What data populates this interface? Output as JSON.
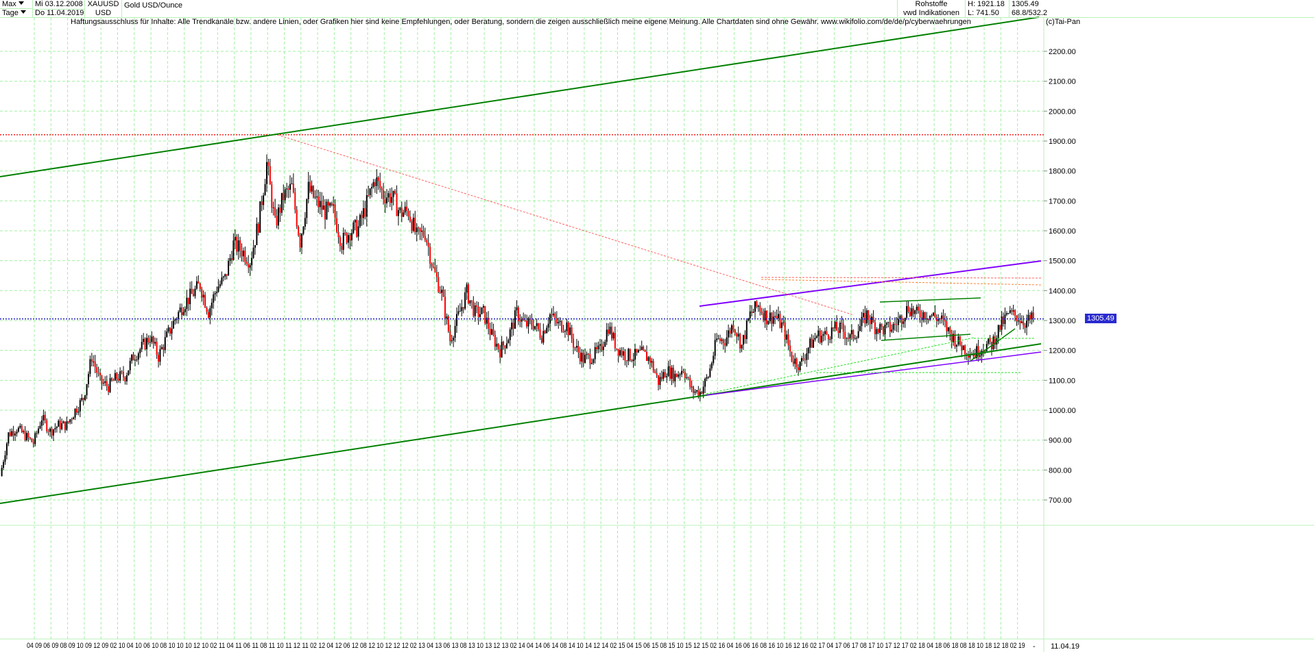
{
  "header": {
    "range_select": "Max",
    "interval_select": "Tage",
    "date_from": "Mi 03.12.2008",
    "date_to": "Do 11.04.2019",
    "symbol": "XAUUSD",
    "currency": "USD",
    "name": "Gold USD/Ounce",
    "category": "Rohstoffe",
    "source": "vwd Indikationen",
    "high": "H: 1921.18",
    "low": "L: 741.50",
    "last": "1305.49",
    "stats": "68.8/532.2"
  },
  "disclaimer": "Haftungsausschluss für Inhalte: Alle Trendkanäle bzw. andere Linien, oder Grafiken hier sind keine Empfehlungen, oder Beratung, sondern die zeigen ausschließlich meine eigene Meinung. Alle Chartdaten sind ohne Gewähr.  www.wikifolio.com/de/de/p/cyberwaehrungen",
  "copyright": "(c)Tai-Pan",
  "last_price_label": "1305.49",
  "axis_end_date": "11.04.19",
  "axis_end_dash": "-",
  "colors": {
    "up": "#000000",
    "down": "#ff0000",
    "grid": "#a0f0a0",
    "channel": "#008000",
    "purple": "#8000ff",
    "last_line": "#2020c0",
    "high_line": "#ff2020"
  },
  "chart_data": {
    "type": "candlestick",
    "y_ticks": [
      "700.00",
      "800.00",
      "900.00",
      "1000.00",
      "1100.00",
      "1200.00",
      "1300.00",
      "1400.00",
      "1500.00",
      "1600.00",
      "1700.00",
      "1800.00",
      "1900.00",
      "2000.00",
      "2100.00",
      "2200.00"
    ],
    "ylim": [
      670,
      2270
    ],
    "x_ticks": [
      "04 09",
      "06 09",
      "08 09",
      "10 09",
      "12 09",
      "02 10",
      "04 10",
      "06 10",
      "08 10",
      "10 10",
      "12 10",
      "02 11",
      "04 11",
      "06 11",
      "08 11",
      "10 11",
      "12 11",
      "02 12",
      "04 12",
      "06 12",
      "08 12",
      "10 12",
      "12 12",
      "02 13",
      "04 13",
      "06 13",
      "08 13",
      "10 13",
      "12 13",
      "02 14",
      "04 14",
      "06 14",
      "08 14",
      "10 14",
      "12 14",
      "02 15",
      "04 15",
      "06 15",
      "08 15",
      "10 15",
      "12 15",
      "02 16",
      "04 16",
      "06 16",
      "08 16",
      "10 16",
      "12 16",
      "02 17",
      "04 17",
      "06 17",
      "08 17",
      "10 17",
      "12 17",
      "02 18",
      "04 18",
      "06 18",
      "08 18",
      "10 18",
      "12 18",
      "02 19"
    ],
    "grid": true,
    "monthly_close_approx": [
      780,
      920,
      940,
      915,
      890,
      975,
      930,
      950,
      950,
      1000,
      1040,
      1180,
      1095,
      1080,
      1110,
      1115,
      1180,
      1210,
      1245,
      1180,
      1245,
      1305,
      1355,
      1385,
      1420,
      1330,
      1410,
      1440,
      1555,
      1535,
      1500,
      1625,
      1825,
      1620,
      1715,
      1745,
      1565,
      1740,
      1695,
      1665,
      1665,
      1560,
      1600,
      1610,
      1690,
      1775,
      1720,
      1715,
      1660,
      1665,
      1580,
      1595,
      1470,
      1390,
      1235,
      1315,
      1395,
      1325,
      1325,
      1250,
      1200,
      1245,
      1325,
      1285,
      1290,
      1250,
      1320,
      1285,
      1285,
      1210,
      1170,
      1180,
      1200,
      1280,
      1210,
      1185,
      1180,
      1190,
      1170,
      1095,
      1135,
      1115,
      1140,
      1065,
      1060,
      1115,
      1235,
      1235,
      1290,
      1215,
      1320,
      1350,
      1310,
      1315,
      1275,
      1175,
      1150,
      1210,
      1250,
      1250,
      1270,
      1270,
      1240,
      1270,
      1320,
      1280,
      1270,
      1275,
      1305,
      1345,
      1320,
      1325,
      1315,
      1300,
      1255,
      1225,
      1200,
      1190,
      1215,
      1220,
      1280,
      1320,
      1315,
      1295,
      1305.49
    ],
    "high_line": 1921.18,
    "last_line": 1305.49
  }
}
